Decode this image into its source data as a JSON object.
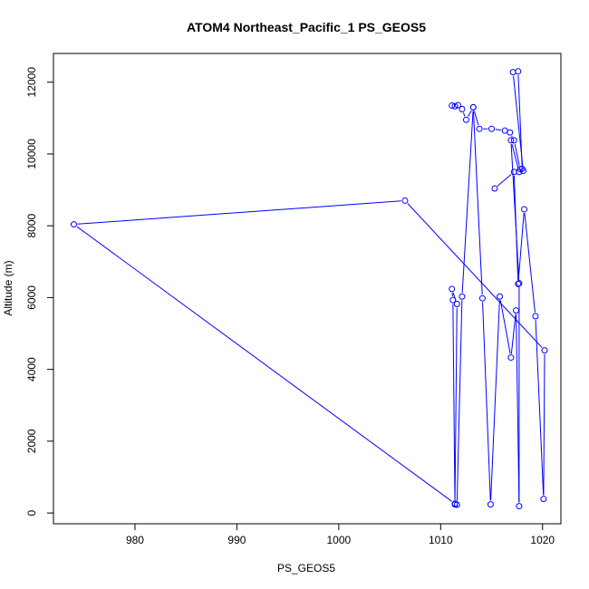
{
  "chart_data": {
    "type": "line",
    "title": "ATOM4 Northeast_Pacific_1 PS_GEOS5",
    "xlabel": "PS_GEOS5",
    "ylabel": "Altitude (m)",
    "xlim": [
      972.0,
      1021.8
    ],
    "ylim": [
      -300,
      12800
    ],
    "xticks": [
      980,
      990,
      1000,
      1010,
      1020
    ],
    "yticks": [
      0,
      2000,
      4000,
      6000,
      8000,
      10000,
      12000
    ],
    "grid": false,
    "series_color": "#0000ff",
    "x": [
      1011.1,
      1011.4,
      1011.7,
      1012.1,
      1012.5,
      1013.2,
      1013.8,
      1015.0,
      1016.3,
      1016.8,
      1017.2,
      1017.8,
      1018.1,
      1017.1,
      1017.6,
      1018.0,
      1017.7,
      1016.9,
      1017.7,
      1017.7,
      1017.4,
      1016.9,
      1015.8,
      1014.9,
      1014.1,
      1013.2,
      1012.1,
      1011.6,
      1011.4,
      1011.2,
      1011.1,
      1011.6,
      1011.4,
      974.0,
      1006.5,
      1020.2,
      1020.1,
      1019.3,
      1018.2,
      1017.6,
      1017.2,
      1015.3
    ],
    "y": [
      11350,
      11330,
      11360,
      11250,
      10950,
      11300,
      10700,
      10700,
      10650,
      10600,
      10380,
      9580,
      9530,
      12280,
      12300,
      9590,
      9500,
      10380,
      6400,
      190,
      5640,
      4330,
      6030,
      240,
      5980,
      11300,
      6030,
      230,
      240,
      5930,
      6240,
      5820,
      260,
      8040,
      8700,
      4530,
      390,
      5480,
      8460,
      6380,
      9500,
      9040
    ]
  }
}
